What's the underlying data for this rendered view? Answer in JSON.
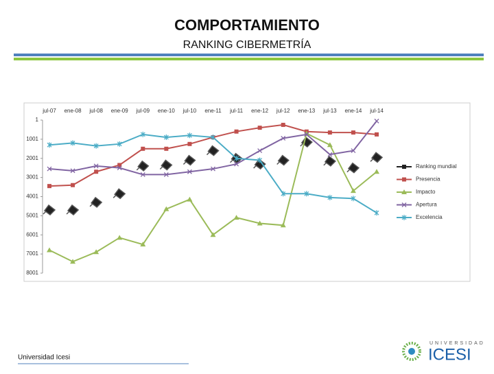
{
  "header": {
    "title": "COMPORTAMIENTO",
    "subtitle": "RANKING CIBERMETRÍA"
  },
  "footer": {
    "text": "Universidad Icesi",
    "logo_top": "UNIVERSIDAD",
    "logo_main": "ICESI"
  },
  "chart_data": {
    "type": "line",
    "categories": [
      "jul-07",
      "ene-08",
      "jul-08",
      "ene-09",
      "jul-09",
      "ene-10",
      "jul-10",
      "ene-11",
      "jul-11",
      "ene-12",
      "jul-12",
      "ene-13",
      "jul-13",
      "ene-14",
      "jul-14"
    ],
    "ylim": [
      1,
      8001
    ],
    "yticks": [
      1,
      1001,
      2001,
      3001,
      4001,
      5001,
      6001,
      7001,
      8001
    ],
    "y_inverted": true,
    "legend": "right",
    "series": [
      {
        "name": "Ranking mundial",
        "color": "#222222",
        "marker": "gem",
        "line": false,
        "values": [
          4700,
          4700,
          4300,
          3850,
          2400,
          2350,
          2100,
          1600,
          2000,
          2300,
          2100,
          1150,
          2150,
          2500,
          1950
        ]
      },
      {
        "name": "Presencia",
        "color": "#c0504d",
        "marker": "square",
        "line": true,
        "values": [
          3450,
          3400,
          2700,
          2350,
          1500,
          1500,
          1250,
          900,
          600,
          400,
          250,
          600,
          650,
          650,
          750
        ]
      },
      {
        "name": "Impacto",
        "color": "#9bbb59",
        "marker": "triangle",
        "line": true,
        "values": [
          6800,
          7400,
          6900,
          6150,
          6500,
          4650,
          4150,
          6000,
          5100,
          5400,
          5500,
          700,
          1300,
          3700,
          2700
        ]
      },
      {
        "name": "Apertura",
        "color": "#8064a2",
        "marker": "x",
        "line": true,
        "values": [
          2550,
          2650,
          2400,
          2500,
          2850,
          2850,
          2700,
          2550,
          2300,
          1600,
          950,
          750,
          1800,
          1600,
          50
        ]
      },
      {
        "name": "Excelencia",
        "color": "#4bacc6",
        "marker": "star",
        "line": true,
        "values": [
          1300,
          1200,
          1350,
          1250,
          750,
          900,
          800,
          900,
          2000,
          2100,
          3850,
          3850,
          4050,
          4100,
          4850
        ]
      }
    ]
  }
}
